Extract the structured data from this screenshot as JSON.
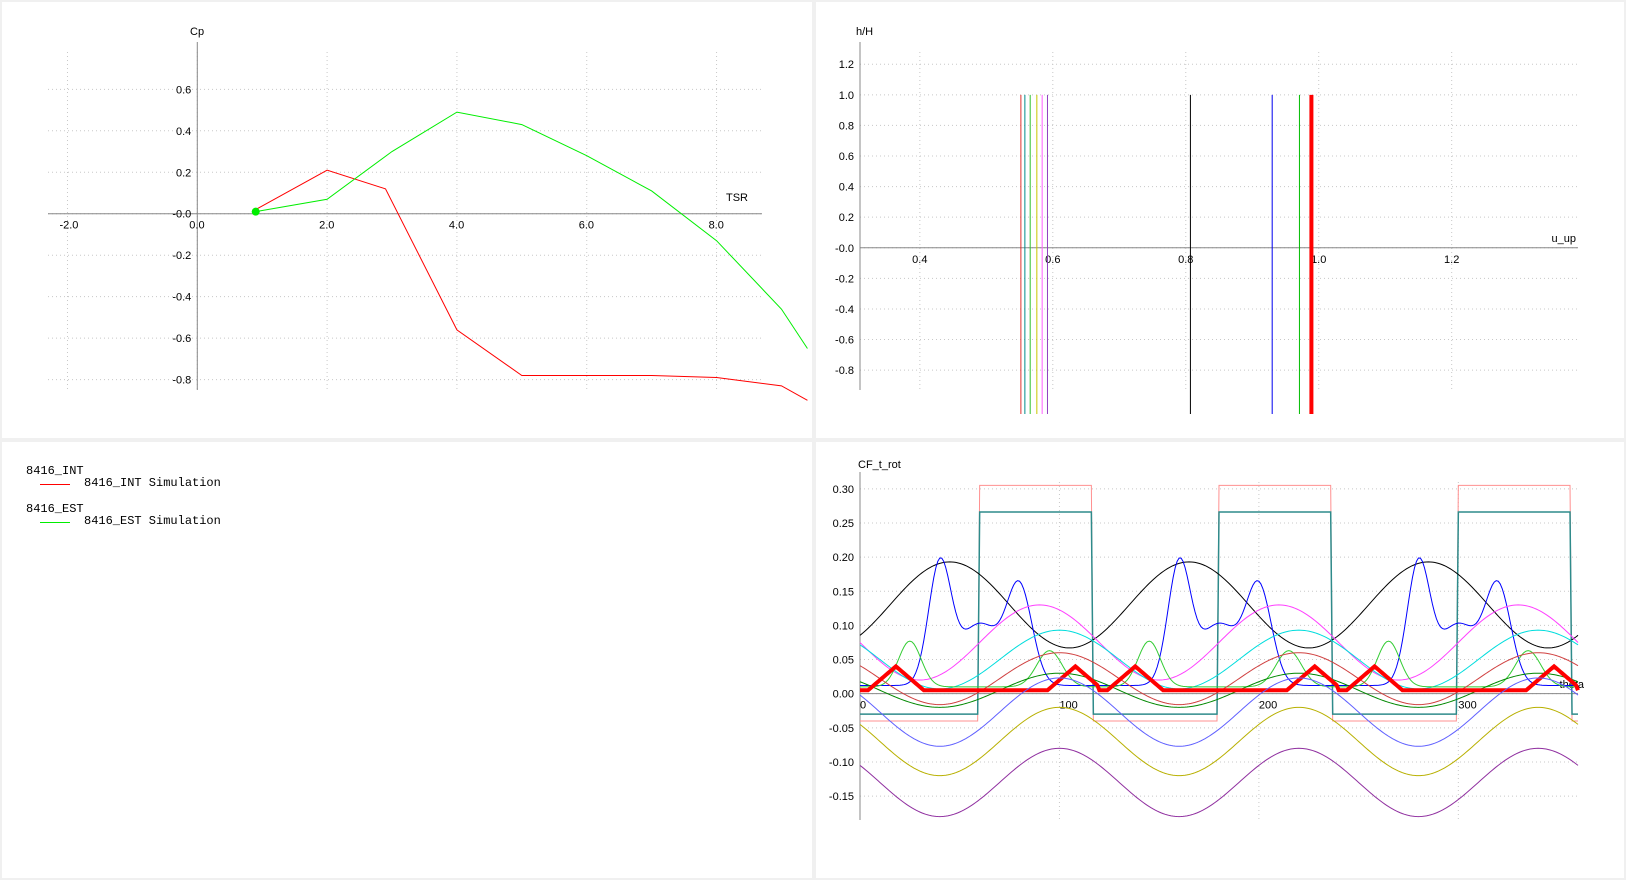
{
  "chart_data": [
    {
      "type": "line",
      "id": "cp-tsr",
      "xlabel": "TSR",
      "ylabel": "Cp",
      "xlim": [
        -2.3,
        8.7
      ],
      "ylim": [
        -0.85,
        0.78
      ],
      "xticks": [
        -2.0,
        0.0,
        2.0,
        4.0,
        6.0,
        8.0
      ],
      "xtick_labels": [
        "-2.0",
        "0.0",
        "2.0",
        "4.0",
        "6.0",
        "8.0"
      ],
      "yticks": [
        0.6,
        0.4,
        0.2,
        0.0,
        -0.2,
        -0.4,
        -0.6,
        -0.8
      ],
      "ytick_labels": [
        "0.6",
        "0.4",
        "0.2",
        "-0.0",
        "-0.2",
        "-0.4",
        "-0.6",
        "-0.8"
      ],
      "grid": true,
      "series": [
        {
          "name": "8416_INT Simulation",
          "color": "#ff0000",
          "width": 1,
          "x": [
            0.9,
            2.0,
            2.9,
            4.0,
            5.0,
            6.0,
            6.5,
            7.0,
            8.0,
            9.0,
            9.4
          ],
          "y": [
            0.02,
            0.21,
            0.12,
            -0.56,
            -0.78,
            -0.78,
            -0.78,
            -0.78,
            -0.79,
            -0.83,
            -0.9
          ]
        },
        {
          "name": "8416_EST Simulation",
          "color": "#00ee00",
          "width": 1,
          "x": [
            0.9,
            2.0,
            3.0,
            4.0,
            5.0,
            6.0,
            7.0,
            8.0,
            9.0,
            9.4
          ],
          "y": [
            0.01,
            0.07,
            0.3,
            0.49,
            0.43,
            0.28,
            0.11,
            -0.13,
            -0.46,
            -0.65
          ]
        }
      ],
      "markers": [
        {
          "x": 0.9,
          "y": 0.01,
          "color": "#00ee00"
        }
      ]
    },
    {
      "type": "line",
      "id": "h-uup",
      "xlabel": "u_up",
      "ylabel": "h/H",
      "xlim": [
        0.31,
        1.39
      ],
      "ylim": [
        -0.93,
        1.28
      ],
      "xticks": [
        0.4,
        0.6,
        0.8,
        1.0,
        1.2
      ],
      "xtick_labels": [
        "0.4",
        "0.6",
        "0.8",
        "1.0",
        "1.2"
      ],
      "yticks": [
        1.2,
        1.0,
        0.8,
        0.6,
        0.4,
        0.2,
        0.0,
        -0.2,
        -0.4,
        -0.6,
        -0.8
      ],
      "ytick_labels": [
        "1.2",
        "1.0",
        "0.8",
        "0.6",
        "0.4",
        "0.2",
        "-0.0",
        "-0.2",
        "-0.4",
        "-0.6",
        "-0.8"
      ],
      "grid": true,
      "series": [
        {
          "color": "#e03030",
          "width": 1,
          "x": 0.552
        },
        {
          "color": "#008b8b",
          "width": 1,
          "x": 0.558
        },
        {
          "color": "#30c030",
          "width": 1,
          "x": 0.566
        },
        {
          "color": "#c8c800",
          "width": 1,
          "x": 0.576
        },
        {
          "color": "#ff60ff",
          "width": 1,
          "x": 0.584
        },
        {
          "color": "#9040c0",
          "width": 1,
          "x": 0.592
        },
        {
          "color": "#000000",
          "width": 1,
          "x": 0.807
        },
        {
          "color": "#0000ee",
          "width": 1,
          "x": 0.93
        },
        {
          "color": "#00bb00",
          "width": 1,
          "x": 0.971
        },
        {
          "color": "#ff0000",
          "width": 4,
          "x": 0.989
        }
      ],
      "y_range": [
        -1.0,
        1.0
      ]
    },
    {
      "type": "line",
      "id": "cf-theta",
      "xlabel": "theta",
      "ylabel": "CF_t_rot",
      "xlim": [
        0,
        360
      ],
      "ylim": [
        -0.185,
        0.31
      ],
      "xticks": [
        0,
        100,
        200,
        300
      ],
      "xtick_labels": [
        "0",
        "100",
        "200",
        "300"
      ],
      "yticks": [
        0.3,
        0.25,
        0.2,
        0.15,
        0.1,
        0.05,
        0.0,
        -0.05,
        -0.1,
        -0.15
      ],
      "ytick_labels": [
        "0.30",
        "0.25",
        "0.20",
        "0.15",
        "0.10",
        "0.05",
        "0.00",
        "-0.05",
        "-0.10",
        "-0.15"
      ],
      "grid": true,
      "series": [
        {
          "color": "#ff9090",
          "width": 1,
          "kind": "square",
          "high": 0.305,
          "low": -0.04,
          "phase": 0
        },
        {
          "color": "#2e8b8b",
          "width": 1.5,
          "kind": "square",
          "high": 0.266,
          "low": -0.03,
          "phase": 0
        },
        {
          "color": "#000000",
          "width": 1,
          "kind": "sine",
          "mean": 0.13,
          "amp": 0.063,
          "peak": 45
        },
        {
          "color": "#0000ff",
          "width": 1,
          "kind": "bump",
          "base": 0.012,
          "peak_val": 0.187,
          "peak2": 0.153
        },
        {
          "color": "#ff40ff",
          "width": 1,
          "kind": "sine",
          "mean": 0.075,
          "amp": 0.055,
          "peak": 90
        },
        {
          "color": "#00dddd",
          "width": 1,
          "kind": "sine",
          "mean": 0.05,
          "amp": 0.043,
          "peak": 100
        },
        {
          "color": "#33cc33",
          "width": 1,
          "kind": "bump2",
          "base": 0.01,
          "peak_val": 0.077,
          "peak2": 0.063
        },
        {
          "color": "#d04040",
          "width": 1,
          "kind": "sine",
          "mean": 0.022,
          "amp": 0.038,
          "peak": 100
        },
        {
          "color": "#008800",
          "width": 1,
          "kind": "sine",
          "mean": 0.005,
          "amp": 0.025,
          "peak": 100
        },
        {
          "color": "#ff0000",
          "width": 4,
          "kind": "redbump"
        },
        {
          "color": "#6060ff",
          "width": 1,
          "kind": "sine",
          "mean": -0.027,
          "amp": 0.05,
          "peak": 100,
          "invert": true
        },
        {
          "color": "#b8b000",
          "width": 1,
          "kind": "sine",
          "mean": -0.07,
          "amp": 0.05,
          "peak": 100,
          "invert": true
        },
        {
          "color": "#9030a0",
          "width": 1,
          "kind": "sine",
          "mean": -0.13,
          "amp": 0.05,
          "peak": 100,
          "invert": true
        }
      ]
    }
  ],
  "legend": {
    "groups": [
      {
        "title": "8416_INT",
        "entry": "8416_INT Simulation",
        "color": "#ff0000"
      },
      {
        "title": "8416_EST",
        "entry": "8416_EST Simulation",
        "color": "#00ee00"
      }
    ]
  }
}
